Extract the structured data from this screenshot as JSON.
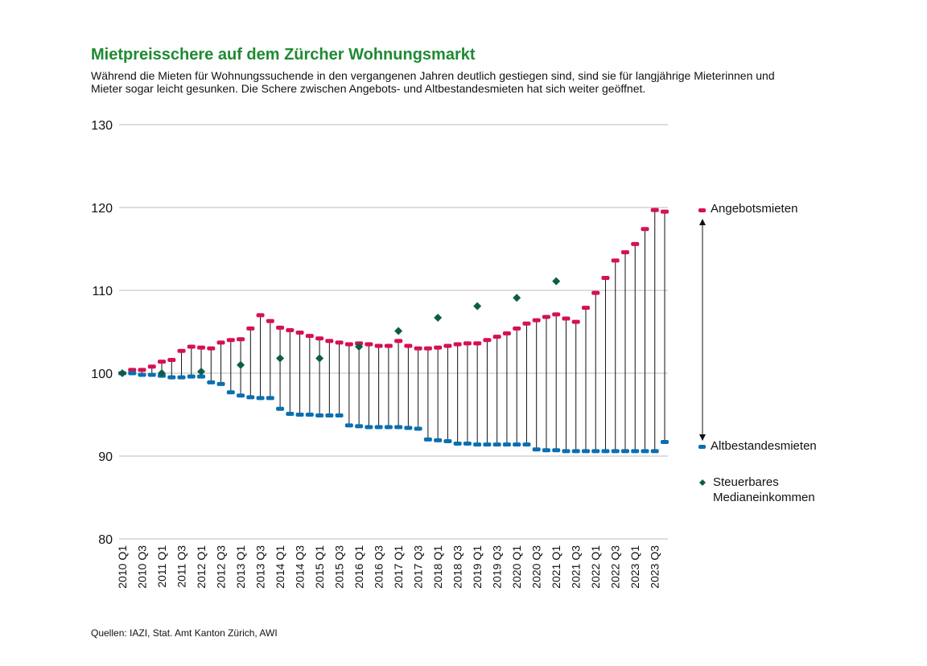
{
  "chart_data": {
    "type": "dumbbell",
    "title": "Mietpreisschere auf dem Zürcher Wohnungsmarkt",
    "subtitle": "Während die Mieten für Wohnungssuchende in den vergangenen Jahren deutlich gestiegen sind, sind sie für langjährige Mieterinnen und Mieter sogar leicht gesunken. Die Schere zwischen Angebots- und Altbestandesmieten hat sich weiter geöffnet.",
    "source": "Quellen: IAZI, Stat. Amt Kanton Zürich, AWI",
    "categories": [
      "2010 Q1",
      null,
      "2010 Q3",
      null,
      "2011 Q1",
      null,
      "2011 Q3",
      null,
      "2012 Q1",
      null,
      "2012 Q3",
      null,
      "2013 Q1",
      null,
      "2013 Q3",
      null,
      "2014 Q1",
      null,
      "2014 Q3",
      null,
      "2015 Q1",
      null,
      "2015 Q3",
      null,
      "2016 Q1",
      null,
      "2016 Q3",
      null,
      "2017 Q1",
      null,
      "2017 Q3",
      null,
      "2018 Q1",
      null,
      "2018 Q3",
      null,
      "2019 Q1",
      null,
      "2019 Q3",
      null,
      "2020 Q1",
      null,
      "2020 Q3",
      null,
      "2021 Q1",
      null,
      "2021 Q3",
      null,
      "2022 Q1",
      null,
      "2022 Q3",
      null,
      "2023 Q1",
      null,
      "2023 Q3",
      null
    ],
    "series": [
      {
        "name": "Angebotsmieten",
        "color": "#d6114f",
        "values": [
          100,
          100.4,
          100.4,
          100.8,
          101.4,
          101.6,
          102.7,
          103.2,
          103.1,
          103.0,
          103.7,
          104.0,
          104.1,
          105.4,
          107.0,
          106.3,
          105.5,
          105.2,
          104.9,
          104.5,
          104.2,
          103.9,
          103.7,
          103.5,
          103.6,
          103.5,
          103.3,
          103.3,
          103.9,
          103.3,
          103.0,
          103.0,
          103.1,
          103.3,
          103.5,
          103.6,
          103.6,
          104.0,
          104.4,
          104.8,
          105.4,
          106.0,
          106.4,
          106.8,
          107.1,
          106.6,
          106.2,
          107.9,
          109.7,
          111.5,
          113.6,
          114.6,
          115.6,
          117.4,
          119.7,
          119.5
        ]
      },
      {
        "name": "Altbestandesmieten",
        "color": "#0a6fb0",
        "values": [
          100,
          100.0,
          99.8,
          99.8,
          99.7,
          99.5,
          99.5,
          99.6,
          99.6,
          98.9,
          98.7,
          97.7,
          97.3,
          97.1,
          97.0,
          97.0,
          95.7,
          95.1,
          95.0,
          95.0,
          94.9,
          94.9,
          94.9,
          93.7,
          93.6,
          93.5,
          93.5,
          93.5,
          93.5,
          93.4,
          93.3,
          92.0,
          91.9,
          91.8,
          91.5,
          91.5,
          91.4,
          91.4,
          91.4,
          91.4,
          91.4,
          91.4,
          90.8,
          90.7,
          90.7,
          90.6,
          90.6,
          90.6,
          90.6,
          90.6,
          90.6,
          90.6,
          90.6,
          90.6,
          90.6,
          91.7
        ]
      },
      {
        "name": "Steuerbares Medianeinkommen",
        "color": "#0d5c4a",
        "values": [
          100,
          null,
          null,
          null,
          100.0,
          null,
          null,
          null,
          100.2,
          null,
          null,
          null,
          101.0,
          null,
          null,
          null,
          101.8,
          null,
          null,
          null,
          101.8,
          null,
          null,
          null,
          103.2,
          null,
          null,
          null,
          105.1,
          null,
          null,
          null,
          106.7,
          null,
          null,
          null,
          108.1,
          null,
          null,
          null,
          109.1,
          null,
          null,
          null,
          111.1,
          null,
          null,
          null,
          null,
          null,
          null,
          null,
          null,
          null,
          null,
          null
        ]
      }
    ],
    "ylim": [
      80,
      130
    ],
    "yticks": [
      80,
      90,
      100,
      110,
      120,
      130
    ],
    "grid": true
  }
}
